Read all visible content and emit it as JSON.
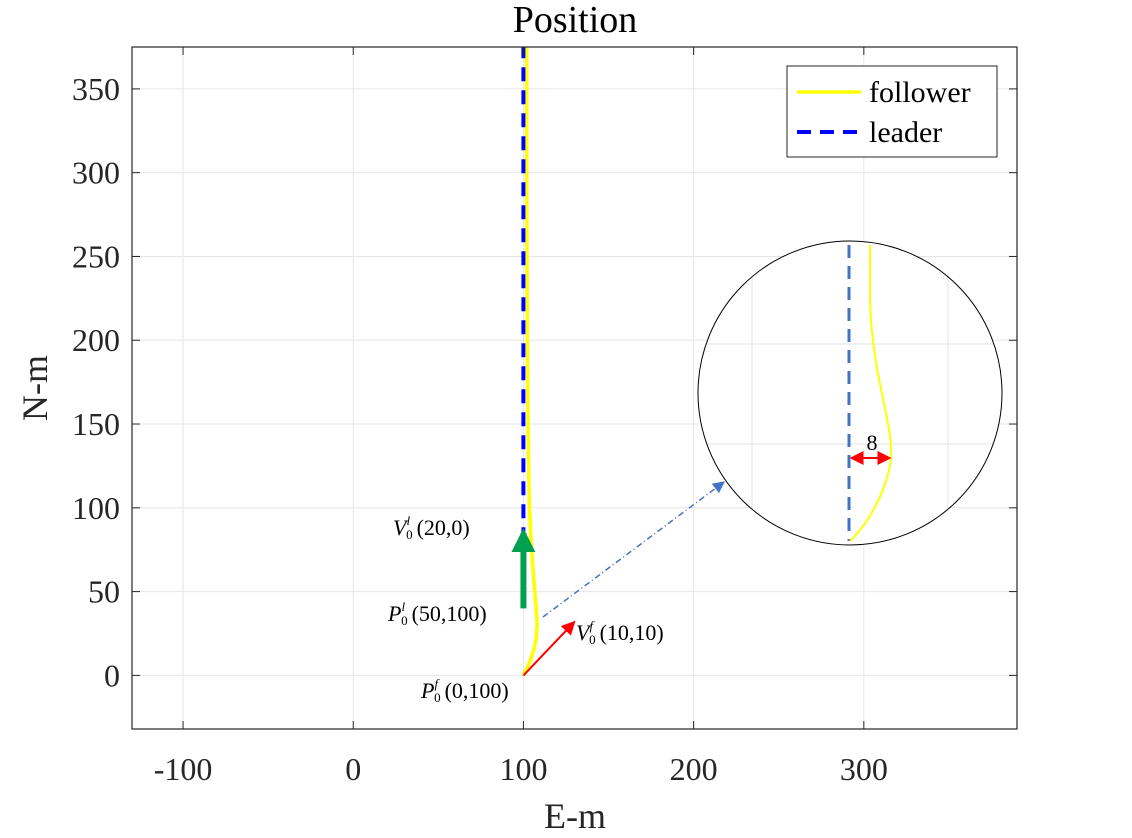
{
  "chart_data": {
    "type": "line",
    "title": "Position",
    "xlabel": "E-m",
    "ylabel": "N-m",
    "xlim": [
      -130,
      390
    ],
    "ylim": [
      -32,
      375
    ],
    "xticks": [
      -100,
      0,
      100,
      200,
      300
    ],
    "yticks": [
      0,
      50,
      100,
      150,
      200,
      250,
      300,
      350
    ],
    "xtick_labels": [
      "-100",
      "0",
      "100",
      "200",
      "300"
    ],
    "ytick_labels": [
      "0",
      "50",
      "100",
      "150",
      "200",
      "250",
      "300",
      "350"
    ],
    "grid": true,
    "legend_position": "top-right",
    "colors": {
      "follower": "#FFFF00",
      "leader": "#0000FF",
      "leader_velocity": "#00A050",
      "follower_velocity": "#FF0000",
      "zoom_leader": "#4472C4",
      "zoom_gap": "#FF0000",
      "connector": "#4472C4"
    },
    "series": [
      {
        "name": "follower",
        "style": "solid",
        "x": [
          100,
          102,
          104,
          106,
          107.5,
          108,
          107.5,
          106.5,
          105.5,
          104.5,
          103.5,
          103,
          102.6,
          102.3,
          102.1,
          102,
          102,
          102
        ],
        "y": [
          0,
          4,
          9,
          15,
          22,
          30,
          40,
          52,
          65,
          80,
          100,
          130,
          160,
          200,
          250,
          300,
          340,
          375
        ]
      },
      {
        "name": "leader",
        "style": "dashed",
        "x": [
          100,
          100
        ],
        "y": [
          80,
          375
        ]
      }
    ],
    "annotations": {
      "leader_velocity": {
        "label": "V",
        "sup": "l",
        "sub": "0",
        "value": "(20,0)",
        "from": [
          100,
          40
        ],
        "to": [
          100,
          85
        ]
      },
      "leader_position": {
        "label": "P",
        "sup": "l",
        "sub": "0",
        "value": "(50,100)"
      },
      "follower_velocity": {
        "label": "V",
        "sup": "f",
        "sub": "0",
        "value": "(10,10)",
        "from": [
          100,
          0
        ],
        "to": [
          130,
          32
        ]
      },
      "follower_position": {
        "label": "P",
        "sup": "f",
        "sub": "0",
        "value": "(0,100)"
      },
      "zoom_gap_label": "8"
    }
  }
}
